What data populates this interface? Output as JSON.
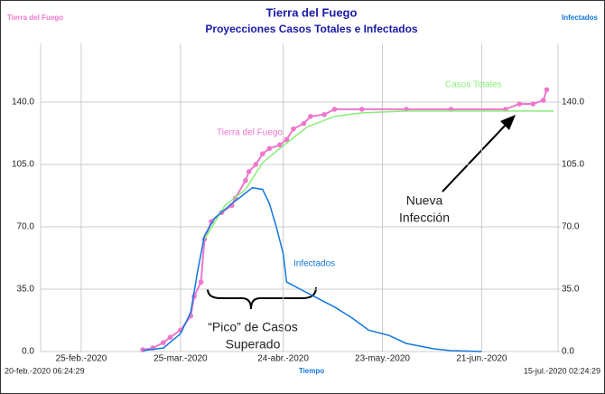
{
  "chart_data": {
    "type": "line",
    "title": "Tierra del Fuego",
    "subtitle": "Proyecciones Casos Totales e Infectados",
    "y_label": "Tierra del Fuego",
    "y2_label": "Infectados",
    "x_label": "Tiempo",
    "x_start_label": "20-feb.-2020 06:24:29",
    "x_end_label": "15-jul.-2020 02:24:29",
    "xlim": [
      51.27,
      196.1
    ],
    "xticks": [
      {
        "value": 56,
        "label": "25-feb.-2020"
      },
      {
        "value": 85,
        "label": "25-mar.-2020"
      },
      {
        "value": 115,
        "label": "24-abr.-2020"
      },
      {
        "value": 144,
        "label": "23-may.-2020"
      },
      {
        "value": 173,
        "label": "21-jun.-2020"
      }
    ],
    "ylim": [
      0,
      173
    ],
    "yticks": [
      {
        "value": 0,
        "label": "0.0"
      },
      {
        "value": 35,
        "label": "35.0"
      },
      {
        "value": 70,
        "label": "70.0"
      },
      {
        "value": 105,
        "label": "105.0"
      },
      {
        "value": 140,
        "label": "140.0"
      }
    ],
    "y2lim": [
      0,
      173
    ],
    "y2ticks": [
      {
        "value": 0,
        "label": "0.0"
      },
      {
        "value": 35,
        "label": "35.0"
      },
      {
        "value": 70,
        "label": "70.0"
      },
      {
        "value": 105,
        "label": "105.0"
      },
      {
        "value": 140,
        "label": "140.0"
      }
    ],
    "grid": true,
    "series": [
      {
        "name": "Tierra del Fuego",
        "color": "#ee77cc",
        "markers": true,
        "x": [
          74,
          77,
          80,
          82,
          85,
          88,
          89,
          91,
          92,
          94,
          97,
          100,
          101,
          104,
          105,
          107,
          109,
          111,
          114,
          116,
          118,
          121,
          123,
          127,
          130,
          138,
          151,
          164,
          180,
          184,
          188,
          191,
          192
        ],
        "values": [
          1,
          2,
          5,
          8,
          12,
          20,
          31,
          39,
          63,
          73,
          78,
          82,
          86,
          96,
          101,
          105,
          111,
          114,
          116,
          119,
          125,
          128,
          132,
          133,
          136,
          136,
          136,
          136,
          136,
          139,
          139,
          141,
          147
        ]
      },
      {
        "name": "Casos Totales",
        "color": "#88ee77",
        "markers": false,
        "x": [
          92,
          98,
          104,
          109,
          114,
          122,
          130,
          138,
          151,
          194
        ],
        "values": [
          63,
          82,
          91,
          106,
          114,
          126,
          132,
          134,
          135,
          135
        ]
      },
      {
        "name": "Infectados",
        "color": "#1177dd",
        "markers": false,
        "axis": "y2",
        "x": [
          74,
          80,
          85,
          88,
          90,
          92,
          95,
          100,
          104,
          106,
          109,
          111,
          113,
          115,
          116,
          120,
          125,
          130,
          135,
          140,
          146,
          151,
          159,
          164,
          173
        ],
        "values": [
          0.5,
          2,
          10,
          22,
          45,
          65,
          75,
          83,
          89,
          92,
          91,
          83,
          70,
          55,
          39,
          35,
          30,
          25,
          19,
          12,
          9,
          4.5,
          1.5,
          0.5,
          0
        ]
      }
    ],
    "annotations": [
      {
        "lines": [
          "Nueva",
          "Infección"
        ]
      },
      {
        "lines": [
          "“Pico” de Casos",
          "Superado"
        ]
      }
    ]
  }
}
